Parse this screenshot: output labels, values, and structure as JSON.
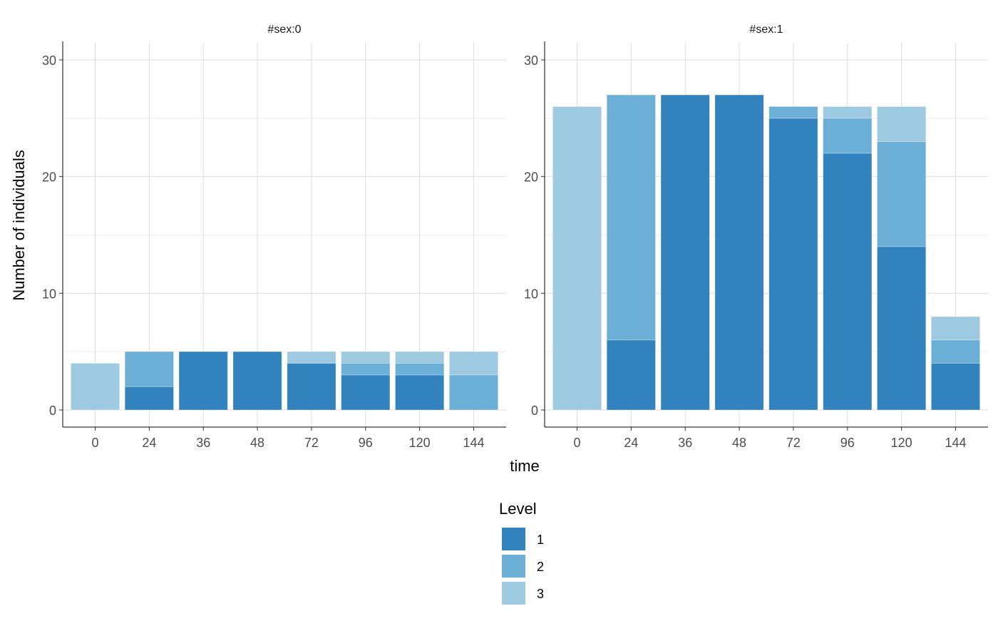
{
  "chart_data": {
    "type": "bar",
    "stacked": true,
    "ylabel": "Number of individuals",
    "xlabel": "time",
    "ylim": [
      0,
      30
    ],
    "yticks": [
      0,
      10,
      20,
      30
    ],
    "grid": true,
    "categories": [
      "0",
      "24",
      "36",
      "48",
      "72",
      "96",
      "120",
      "144"
    ],
    "legend": {
      "title": "Level",
      "position": "bottom",
      "entries": [
        {
          "label": "1",
          "color": "#3182BD"
        },
        {
          "label": "2",
          "color": "#6BAED6"
        },
        {
          "label": "3",
          "color": "#9ECAE1"
        }
      ]
    },
    "panels": [
      {
        "title": "#sex:0",
        "series": [
          {
            "name": "1",
            "values": [
              0,
              2,
              5,
              5,
              4,
              3,
              3,
              0
            ]
          },
          {
            "name": "2",
            "values": [
              0,
              3,
              0,
              0,
              0,
              1,
              1,
              3
            ]
          },
          {
            "name": "3",
            "values": [
              4,
              0,
              0,
              0,
              1,
              1,
              1,
              2
            ]
          }
        ]
      },
      {
        "title": "#sex:1",
        "series": [
          {
            "name": "1",
            "values": [
              0,
              6,
              27,
              27,
              25,
              22,
              14,
              4
            ]
          },
          {
            "name": "2",
            "values": [
              0,
              21,
              0,
              0,
              1,
              3,
              9,
              2
            ]
          },
          {
            "name": "3",
            "values": [
              26,
              0,
              0,
              0,
              0,
              1,
              3,
              2
            ]
          }
        ]
      }
    ]
  }
}
